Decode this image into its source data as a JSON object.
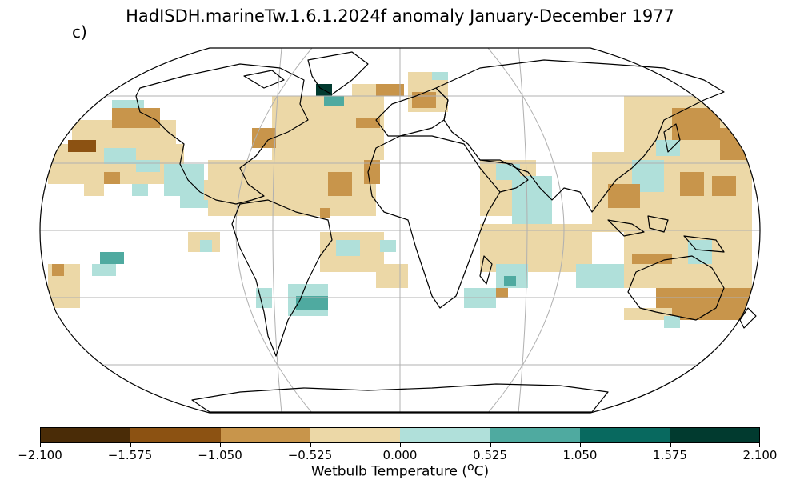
{
  "title": "HadISDH.marineTw.1.6.1.2024f anomaly January-December 1977",
  "panel_label": "c)",
  "colorbar": {
    "label_main": "Wetbulb Temperature (",
    "label_sup": "o",
    "label_end": "C)",
    "ticks": [
      "−2.100",
      "−1.575",
      "−1.050",
      "−0.525",
      "0.000",
      "0.525",
      "1.050",
      "1.575",
      "2.100"
    ],
    "colors": [
      "#4a2c07",
      "#8c5212",
      "#c8954b",
      "#ecd8a7",
      "#b0e0da",
      "#4faaa0",
      "#08695f",
      "#013a2f"
    ]
  },
  "map": {
    "projection": "robinson",
    "ocean_color": "#ffffff",
    "gridline_color": "#b0b0b0"
  }
}
